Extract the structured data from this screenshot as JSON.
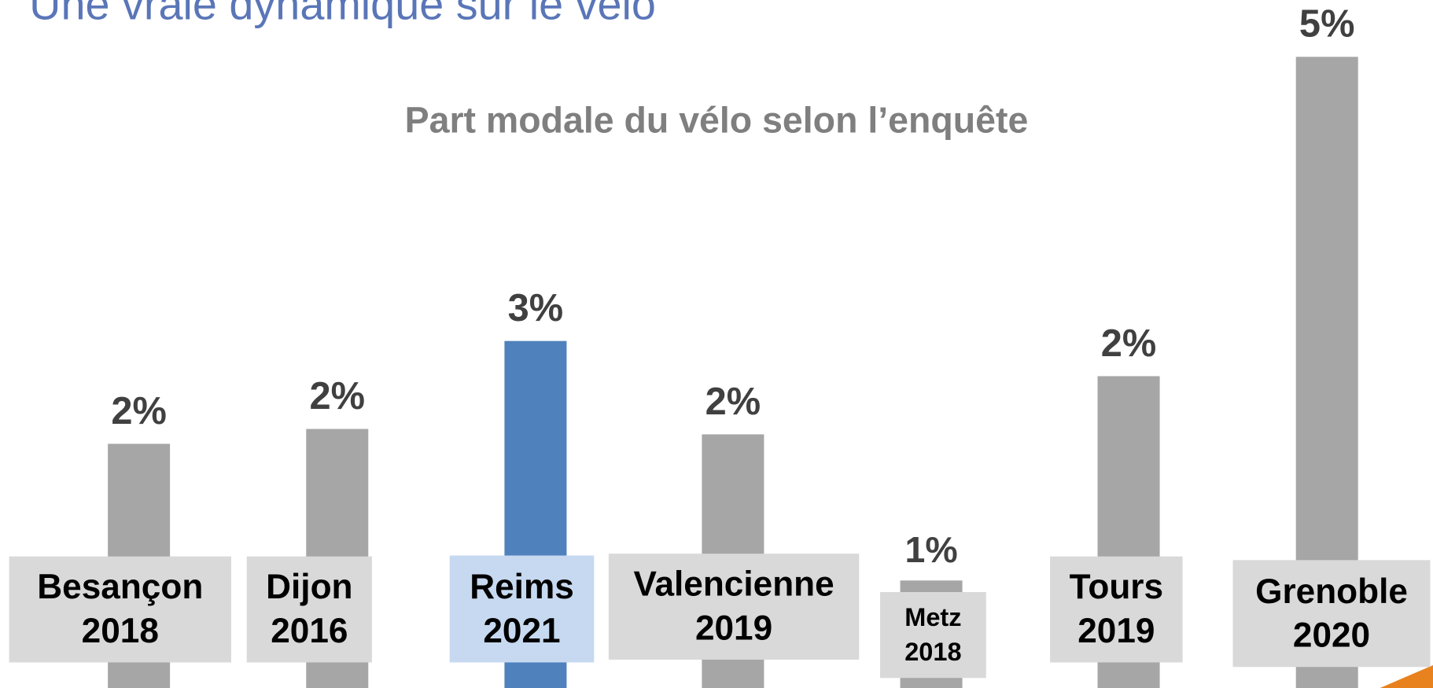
{
  "page_title": "Une vraie dynamique sur le vélo",
  "chart_data": {
    "type": "bar",
    "title": "Part modale du vélo selon l’enquête",
    "categories": [
      "Besançon\n2018",
      "Dijon\n2016",
      "Reims\n2021",
      "Valencienne\n2019",
      "Metz\n2018",
      "Tours\n2019",
      "Grenoble\n2020"
    ],
    "values": [
      1.98,
      2.09,
      2.74,
      2.05,
      0.97,
      2.48,
      4.84
    ],
    "value_labels": [
      "2%",
      "2%",
      "3%",
      "2%",
      "1%",
      "2%",
      "5%"
    ],
    "colors": [
      "#a6a6a6",
      "#a6a6a6",
      "#4f81bd",
      "#a6a6a6",
      "#a6a6a6",
      "#a6a6a6",
      "#a6a6a6"
    ],
    "ylim": [
      0,
      5.26
    ]
  }
}
